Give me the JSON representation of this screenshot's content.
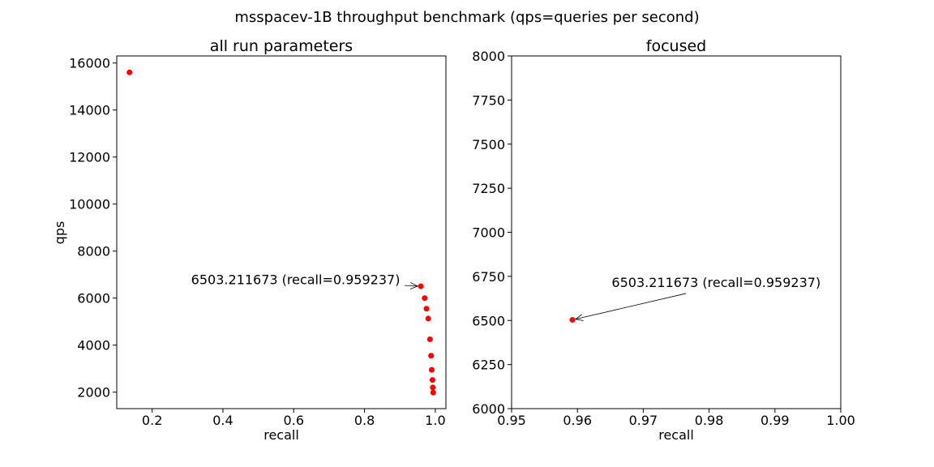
{
  "figure_title": "msspacev-1B throughput benchmark (qps=queries per second)",
  "colors": {
    "point": "#ff0000",
    "axis": "#000000"
  },
  "chart_data": [
    {
      "type": "scatter",
      "title": "all run parameters",
      "xlabel": "recall",
      "ylabel": "qps",
      "xlim": [
        0.1,
        1.03
      ],
      "ylim": [
        1300,
        16300
      ],
      "xticks": [
        0.2,
        0.4,
        0.6,
        0.8,
        1.0
      ],
      "xtick_labels": [
        "0.2",
        "0.4",
        "0.6",
        "0.8",
        "1.0"
      ],
      "yticks": [
        2000,
        4000,
        6000,
        8000,
        10000,
        12000,
        14000,
        16000
      ],
      "ytick_labels": [
        "2000",
        "4000",
        "6000",
        "8000",
        "10000",
        "12000",
        "14000",
        "16000"
      ],
      "grid": false,
      "points": [
        {
          "x": 0.136,
          "y": 15600
        },
        {
          "x": 0.959237,
          "y": 6503.211673
        },
        {
          "x": 0.97,
          "y": 6000
        },
        {
          "x": 0.975,
          "y": 5550
        },
        {
          "x": 0.98,
          "y": 5130
        },
        {
          "x": 0.985,
          "y": 4250
        },
        {
          "x": 0.988,
          "y": 3550
        },
        {
          "x": 0.99,
          "y": 2950
        },
        {
          "x": 0.992,
          "y": 2520
        },
        {
          "x": 0.993,
          "y": 2200
        },
        {
          "x": 0.994,
          "y": 1980
        }
      ],
      "annotation": {
        "text": "6503.211673 (recall=0.959237)",
        "x": 0.959237,
        "y": 6503.211673,
        "text_x": 0.31,
        "text_y": 6600,
        "text_anchor": "start"
      }
    },
    {
      "type": "scatter",
      "title": "focused",
      "xlabel": "recall",
      "ylabel": "",
      "xlim": [
        0.95,
        1.0
      ],
      "ylim": [
        6000,
        8000
      ],
      "xticks": [
        0.95,
        0.96,
        0.97,
        0.98,
        0.99,
        1.0
      ],
      "xtick_labels": [
        "0.95",
        "0.96",
        "0.97",
        "0.98",
        "0.99",
        "1.00"
      ],
      "yticks": [
        6000,
        6250,
        6500,
        6750,
        7000,
        7250,
        7500,
        7750,
        8000
      ],
      "ytick_labels": [
        "6000",
        "6250",
        "6500",
        "6750",
        "7000",
        "7250",
        "7500",
        "7750",
        "8000"
      ],
      "grid": false,
      "points": [
        {
          "x": 0.959237,
          "y": 6503.211673
        }
      ],
      "annotation": {
        "text": "6503.211673 (recall=0.959237)",
        "x": 0.959237,
        "y": 6503.211673,
        "text_x": 0.9652,
        "text_y": 6690,
        "text_anchor": "start"
      }
    }
  ]
}
